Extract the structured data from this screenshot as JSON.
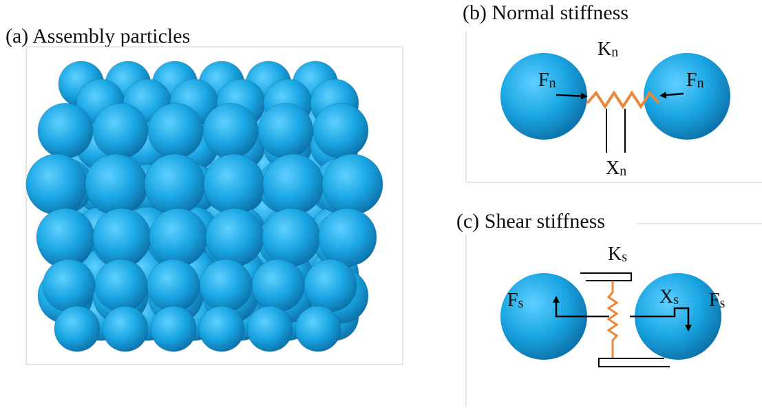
{
  "panel_a": {
    "title": "(a)  Assembly particles"
  },
  "panel_b": {
    "title": "(b)  Normal stiffness",
    "spring_label": {
      "main": "K",
      "sub": "n"
    },
    "force_left": {
      "main": "F",
      "sub": "n"
    },
    "force_right": {
      "main": "F",
      "sub": "n"
    },
    "gap_label": {
      "main": "X",
      "sub": "n"
    }
  },
  "panel_c": {
    "title": "(c)  Shear stiffness",
    "spring_label": {
      "main": "K",
      "sub": "s"
    },
    "force_left": {
      "main": "F",
      "sub": "s"
    },
    "gap_label": {
      "main": "X",
      "sub": "s"
    },
    "force_right": {
      "main": "F",
      "sub": "s"
    }
  }
}
